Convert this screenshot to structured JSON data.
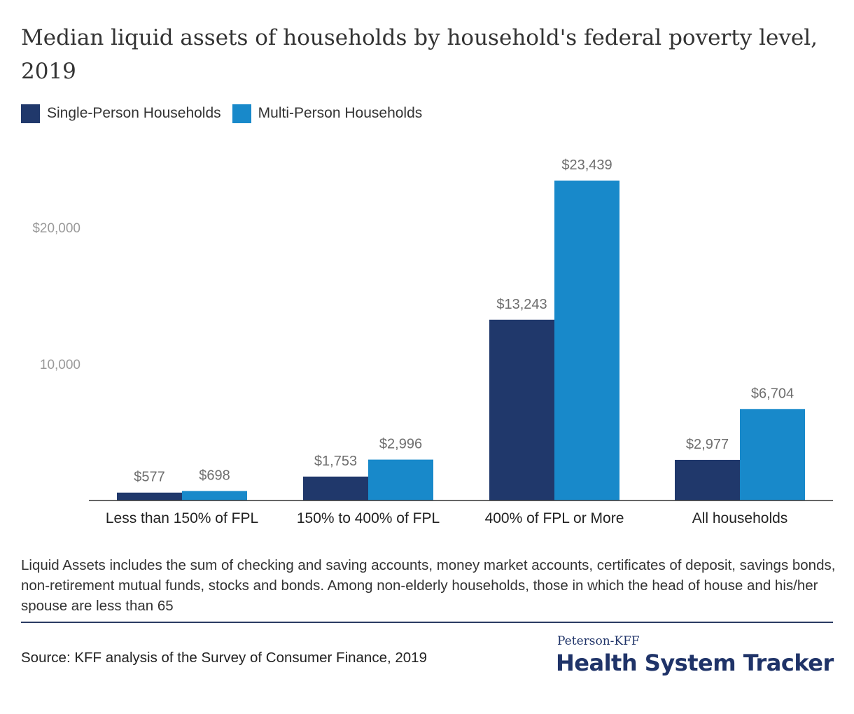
{
  "title": "Median liquid assets of households by household's federal poverty level, 2019",
  "legend": {
    "series1": "Single-Person Households",
    "series2": "Multi-Person Households"
  },
  "colors": {
    "series1": "#20386b",
    "series2": "#1889ca"
  },
  "chart_data": {
    "type": "bar",
    "categories": [
      "Less than 150% of FPL",
      "150% to 400% of FPL",
      "400% of FPL or More",
      "All households"
    ],
    "series": [
      {
        "name": "Single-Person Households",
        "values": [
          577,
          1753,
          13243,
          2977
        ],
        "labels": [
          "$577",
          "$1,753",
          "$13,243",
          "$2,977"
        ]
      },
      {
        "name": "Multi-Person Households",
        "values": [
          698,
          2996,
          23439,
          6704
        ],
        "labels": [
          "$698",
          "$2,996",
          "$23,439",
          "$6,704"
        ]
      }
    ],
    "yticks": [
      {
        "value": 10000,
        "label": "10,000"
      },
      {
        "value": 20000,
        "label": "$20,000"
      }
    ],
    "ylim": [
      0,
      25000
    ],
    "legend_position": "top-left",
    "grid": false
  },
  "note": "Liquid Assets includes the sum of checking and saving accounts, money market accounts, certificates of deposit, savings bonds, non-retirement mutual funds, stocks and bonds. Among non-elderly households, those in which the head of house and his/her spouse are less than 65",
  "source": "Source: KFF analysis of the Survey of Consumer Finance, 2019",
  "brand": {
    "top": "Peterson-KFF",
    "main": "Health System Tracker"
  }
}
